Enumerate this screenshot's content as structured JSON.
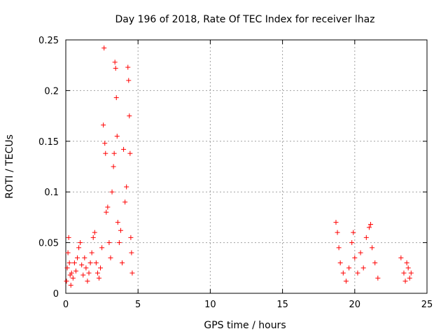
{
  "chart_data": {
    "type": "scatter",
    "title": "Day 196 of 2018, Rate Of TEC Index for receiver lhaz",
    "xlabel": "GPS time / hours",
    "ylabel": "ROTI / TECUs",
    "xlim": [
      0,
      25
    ],
    "ylim": [
      0,
      0.25
    ],
    "xticks": [
      0,
      5,
      10,
      15,
      20,
      25
    ],
    "yticks": [
      0,
      0.05,
      0.1,
      0.15,
      0.2,
      0.25
    ],
    "xtick_labels": [
      "0",
      "5",
      "10",
      "15",
      "20",
      "25"
    ],
    "ytick_labels": [
      "0",
      "0.05",
      "0.1",
      "0.15",
      "0.2",
      "0.25"
    ],
    "grid": true,
    "marker": "+",
    "color": "#ff0000",
    "series": [
      {
        "name": "ROTI",
        "points": [
          [
            0.05,
            0.012
          ],
          [
            0.1,
            0.025
          ],
          [
            0.15,
            0.04
          ],
          [
            0.2,
            0.055
          ],
          [
            0.25,
            0.03
          ],
          [
            0.3,
            0.018
          ],
          [
            0.35,
            0.008
          ],
          [
            0.4,
            0.02
          ],
          [
            0.5,
            0.015
          ],
          [
            0.6,
            0.03
          ],
          [
            0.7,
            0.022
          ],
          [
            0.8,
            0.035
          ],
          [
            0.9,
            0.045
          ],
          [
            1.0,
            0.05
          ],
          [
            1.1,
            0.028
          ],
          [
            1.2,
            0.018
          ],
          [
            1.3,
            0.035
          ],
          [
            1.4,
            0.025
          ],
          [
            1.5,
            0.012
          ],
          [
            1.6,
            0.02
          ],
          [
            1.7,
            0.03
          ],
          [
            1.8,
            0.04
          ],
          [
            1.9,
            0.055
          ],
          [
            2.0,
            0.06
          ],
          [
            2.1,
            0.03
          ],
          [
            2.2,
            0.02
          ],
          [
            2.3,
            0.015
          ],
          [
            2.4,
            0.025
          ],
          [
            2.5,
            0.045
          ],
          [
            2.6,
            0.166
          ],
          [
            2.65,
            0.242
          ],
          [
            2.7,
            0.148
          ],
          [
            2.75,
            0.138
          ],
          [
            2.8,
            0.08
          ],
          [
            2.9,
            0.085
          ],
          [
            3.0,
            0.05
          ],
          [
            3.1,
            0.035
          ],
          [
            3.2,
            0.1
          ],
          [
            3.3,
            0.125
          ],
          [
            3.35,
            0.138
          ],
          [
            3.4,
            0.228
          ],
          [
            3.45,
            0.222
          ],
          [
            3.5,
            0.193
          ],
          [
            3.55,
            0.155
          ],
          [
            3.6,
            0.07
          ],
          [
            3.7,
            0.05
          ],
          [
            3.8,
            0.062
          ],
          [
            3.9,
            0.03
          ],
          [
            4.0,
            0.142
          ],
          [
            4.1,
            0.09
          ],
          [
            4.2,
            0.105
          ],
          [
            4.3,
            0.223
          ],
          [
            4.35,
            0.21
          ],
          [
            4.4,
            0.175
          ],
          [
            4.45,
            0.138
          ],
          [
            4.5,
            0.055
          ],
          [
            4.55,
            0.04
          ],
          [
            4.6,
            0.02
          ],
          [
            18.7,
            0.07
          ],
          [
            18.8,
            0.06
          ],
          [
            18.9,
            0.045
          ],
          [
            19.0,
            0.03
          ],
          [
            19.2,
            0.02
          ],
          [
            19.4,
            0.012
          ],
          [
            19.6,
            0.025
          ],
          [
            19.8,
            0.05
          ],
          [
            19.9,
            0.06
          ],
          [
            20.0,
            0.035
          ],
          [
            20.2,
            0.02
          ],
          [
            20.4,
            0.04
          ],
          [
            20.6,
            0.025
          ],
          [
            20.8,
            0.055
          ],
          [
            21.0,
            0.065
          ],
          [
            21.1,
            0.068
          ],
          [
            21.2,
            0.045
          ],
          [
            21.4,
            0.03
          ],
          [
            21.6,
            0.015
          ],
          [
            23.2,
            0.035
          ],
          [
            23.4,
            0.02
          ],
          [
            23.5,
            0.012
          ],
          [
            23.6,
            0.03
          ],
          [
            23.7,
            0.025
          ],
          [
            23.8,
            0.015
          ],
          [
            23.9,
            0.02
          ]
        ]
      }
    ]
  }
}
